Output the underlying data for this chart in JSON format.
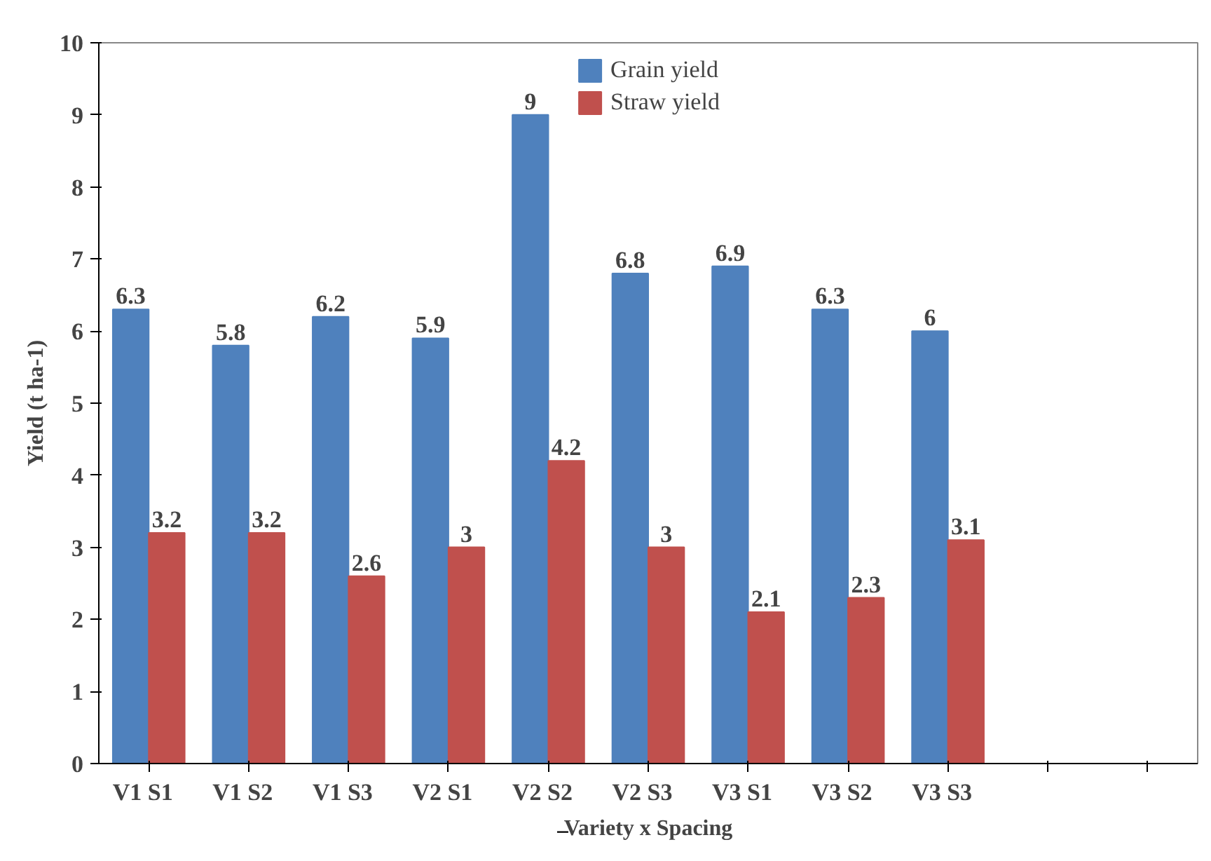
{
  "chart_data": {
    "type": "bar",
    "xlabel": "Variety x Spacing",
    "ylabel": "Yield (t ha-1)",
    "categories": [
      "V1   S1",
      "V1   S2",
      "V1   S3",
      "V2   S1",
      "V2   S2",
      "V2   S3",
      "V3   S1",
      "V3   S2",
      "V3   S3",
      null,
      null
    ],
    "series": [
      {
        "name": "Grain yield",
        "color": "#4f81bd",
        "values": [
          6.3,
          5.8,
          6.2,
          5.9,
          9,
          6.8,
          6.9,
          6.3,
          6,
          null,
          null
        ]
      },
      {
        "name": "Straw yield",
        "color": "#c0504d",
        "values": [
          3.2,
          3.2,
          2.6,
          3,
          4.2,
          3,
          2.1,
          2.3,
          3.1,
          null,
          null
        ]
      }
    ],
    "ylim": [
      0,
      10
    ],
    "yticks": [
      0,
      1,
      2,
      3,
      4,
      5,
      6,
      7,
      8,
      9,
      10
    ],
    "grid": false,
    "legend": "top",
    "data_labels": true
  }
}
